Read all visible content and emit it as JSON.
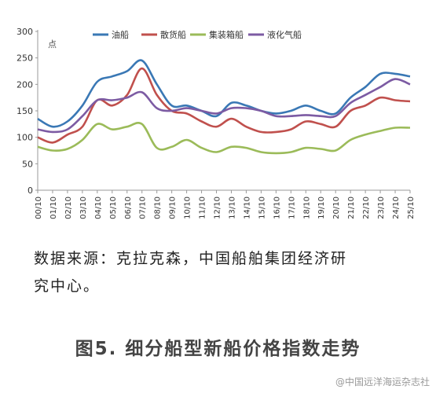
{
  "chart_data": {
    "type": "line",
    "ylabel": "点",
    "ylim": [
      0,
      300
    ],
    "yticks": [
      0,
      50,
      100,
      150,
      200,
      250,
      300
    ],
    "x": [
      "00/10",
      "01/10",
      "02/10",
      "03/10",
      "04/10",
      "05/10",
      "06/10",
      "07/10",
      "08/10",
      "09/10",
      "10/10",
      "11/10",
      "12/10",
      "13/10",
      "14/10",
      "15/10",
      "16/10",
      "17/10",
      "18/10",
      "19/10",
      "20/10",
      "21/10",
      "22/10",
      "23/10",
      "24/10",
      "25/10"
    ],
    "legend_position": "top",
    "grid": false,
    "series": [
      {
        "name": "油船",
        "color": "#3a78b5",
        "values": [
          135,
          120,
          130,
          160,
          205,
          215,
          225,
          245,
          200,
          160,
          160,
          150,
          140,
          165,
          160,
          150,
          145,
          150,
          160,
          150,
          145,
          175,
          195,
          220,
          220,
          215
        ]
      },
      {
        "name": "散货船",
        "color": "#c0504d",
        "values": [
          100,
          90,
          105,
          120,
          170,
          160,
          180,
          230,
          180,
          150,
          145,
          130,
          120,
          135,
          120,
          110,
          110,
          115,
          130,
          125,
          120,
          150,
          160,
          175,
          170,
          168
        ]
      },
      {
        "name": "集装箱船",
        "color": "#9bbb59",
        "values": [
          82,
          75,
          78,
          95,
          125,
          115,
          120,
          125,
          80,
          82,
          95,
          80,
          72,
          82,
          80,
          72,
          70,
          72,
          80,
          78,
          75,
          95,
          105,
          112,
          118,
          118
        ]
      },
      {
        "name": "液化气船",
        "color": "#7c5ba3",
        "values": [
          115,
          110,
          115,
          140,
          170,
          170,
          175,
          185,
          155,
          150,
          155,
          150,
          145,
          155,
          155,
          150,
          140,
          140,
          142,
          140,
          140,
          165,
          180,
          195,
          210,
          200
        ]
      }
    ]
  },
  "caption": {
    "source_line1": "数据来源：克拉克森，中国船舶集团经济研",
    "source_line2": "究中心。",
    "figure_title": "图5. 细分船型新船价格指数走势"
  },
  "watermark": "@中国远洋海运杂志社"
}
